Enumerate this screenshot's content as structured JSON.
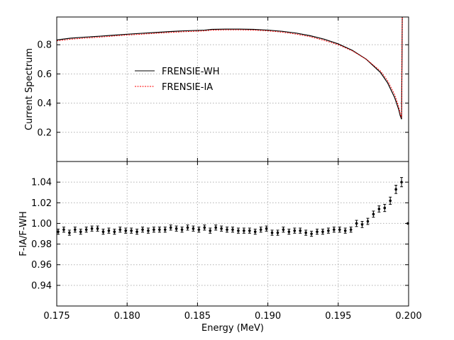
{
  "chart_data": [
    {
      "type": "line",
      "ylabel": "Current Spectrum",
      "xlim": [
        0.175,
        0.2
      ],
      "ylim": [
        0.0,
        0.99
      ],
      "xticks": [
        0.175,
        0.18,
        0.185,
        0.19,
        0.195,
        0.2
      ],
      "yticks": [
        0.2,
        0.4,
        0.6,
        0.8
      ],
      "ytick_labels": [
        "0.2",
        "0.4",
        "0.6",
        "0.8"
      ],
      "grid": true,
      "legend_position": "center-left",
      "series": [
        {
          "name": "FRENSIE-WH",
          "color": "#000000",
          "style": "solid",
          "x": [
            0.175,
            0.176,
            0.177,
            0.178,
            0.179,
            0.18,
            0.181,
            0.182,
            0.183,
            0.184,
            0.185,
            0.1855,
            0.186,
            0.187,
            0.188,
            0.189,
            0.19,
            0.191,
            0.192,
            0.193,
            0.194,
            0.195,
            0.196,
            0.197,
            0.198,
            0.1985,
            0.199,
            0.1993,
            0.1994,
            0.1995,
            0.19955
          ],
          "y": [
            0.833,
            0.845,
            0.852,
            0.858,
            0.865,
            0.872,
            0.878,
            0.884,
            0.89,
            0.895,
            0.898,
            0.9,
            0.905,
            0.907,
            0.907,
            0.905,
            0.9,
            0.892,
            0.88,
            0.862,
            0.838,
            0.806,
            0.762,
            0.7,
            0.61,
            0.54,
            0.44,
            0.355,
            0.315,
            0.29,
            0.99
          ]
        },
        {
          "name": "FRENSIE-IA",
          "color": "#ff0000",
          "style": "dashed",
          "x": [
            0.175,
            0.176,
            0.177,
            0.178,
            0.179,
            0.18,
            0.181,
            0.182,
            0.183,
            0.184,
            0.185,
            0.1855,
            0.186,
            0.187,
            0.188,
            0.189,
            0.19,
            0.191,
            0.192,
            0.193,
            0.194,
            0.195,
            0.196,
            0.197,
            0.198,
            0.1985,
            0.199,
            0.1993,
            0.1994,
            0.1995,
            0.19955
          ],
          "y": [
            0.826,
            0.838,
            0.845,
            0.852,
            0.859,
            0.866,
            0.872,
            0.878,
            0.884,
            0.889,
            0.893,
            0.895,
            0.9,
            0.902,
            0.902,
            0.9,
            0.895,
            0.886,
            0.873,
            0.855,
            0.83,
            0.8,
            0.758,
            0.7,
            0.62,
            0.555,
            0.46,
            0.375,
            0.33,
            0.3,
            0.99
          ]
        }
      ]
    },
    {
      "type": "scatter",
      "xlabel": "Energy (MeV)",
      "ylabel": "F-IA/F-WH",
      "xlim": [
        0.175,
        0.2
      ],
      "ylim": [
        0.92,
        1.06
      ],
      "xticks": [
        0.175,
        0.18,
        0.185,
        0.19,
        0.195,
        0.2
      ],
      "xtick_labels": [
        "0.175",
        "0.180",
        "0.185",
        "0.190",
        "0.195",
        "0.200"
      ],
      "yticks": [
        0.94,
        0.96,
        0.98,
        1.0,
        1.02,
        1.04
      ],
      "ytick_labels": [
        "0.94",
        "0.96",
        "0.98",
        "1.00",
        "1.02",
        "1.04"
      ],
      "grid": true,
      "error_bars": true,
      "series": [
        {
          "color": "#000000",
          "x": [
            0.1751,
            0.1755,
            0.1759,
            0.1763,
            0.1767,
            0.1771,
            0.1775,
            0.1779,
            0.1783,
            0.1787,
            0.1791,
            0.1795,
            0.1799,
            0.1803,
            0.1807,
            0.1811,
            0.1815,
            0.1819,
            0.1823,
            0.1827,
            0.1831,
            0.1835,
            0.1839,
            0.1843,
            0.1847,
            0.1851,
            0.1855,
            0.1859,
            0.1863,
            0.1867,
            0.1871,
            0.1875,
            0.1879,
            0.1883,
            0.1887,
            0.1891,
            0.1895,
            0.1899,
            0.1903,
            0.1907,
            0.1911,
            0.1915,
            0.1919,
            0.1923,
            0.1927,
            0.1931,
            0.1935,
            0.1939,
            0.1943,
            0.1947,
            0.1951,
            0.1955,
            0.1959,
            0.1963,
            0.1967,
            0.1971,
            0.1975,
            0.1979,
            0.1983,
            0.1987,
            0.1991,
            0.1995,
            0.19995
          ],
          "y": [
            0.992,
            0.994,
            0.991,
            0.994,
            0.992,
            0.994,
            0.995,
            0.995,
            0.992,
            0.993,
            0.992,
            0.994,
            0.993,
            0.993,
            0.992,
            0.994,
            0.993,
            0.994,
            0.994,
            0.994,
            0.996,
            0.995,
            0.994,
            0.996,
            0.995,
            0.994,
            0.996,
            0.993,
            0.996,
            0.995,
            0.994,
            0.994,
            0.993,
            0.993,
            0.993,
            0.992,
            0.994,
            0.995,
            0.991,
            0.991,
            0.994,
            0.992,
            0.993,
            0.993,
            0.991,
            0.99,
            0.992,
            0.992,
            0.993,
            0.994,
            0.994,
            0.993,
            0.994,
            1.0,
            0.999,
            1.002,
            1.009,
            1.014,
            1.015,
            1.022,
            1.033,
            1.04,
            1.0
          ],
          "yerr": [
            0.0025,
            0.0025,
            0.0025,
            0.0025,
            0.0025,
            0.0025,
            0.0025,
            0.0025,
            0.0025,
            0.0025,
            0.0025,
            0.0025,
            0.0025,
            0.0025,
            0.0025,
            0.0025,
            0.0025,
            0.0025,
            0.0025,
            0.0025,
            0.0025,
            0.0025,
            0.0025,
            0.0025,
            0.0025,
            0.0025,
            0.0025,
            0.0025,
            0.0025,
            0.0025,
            0.0025,
            0.0025,
            0.0025,
            0.0025,
            0.0025,
            0.0025,
            0.0025,
            0.0025,
            0.0025,
            0.0025,
            0.0025,
            0.0025,
            0.0025,
            0.0025,
            0.0025,
            0.0025,
            0.0025,
            0.0025,
            0.0025,
            0.0025,
            0.0025,
            0.0025,
            0.0025,
            0.003,
            0.003,
            0.003,
            0.003,
            0.003,
            0.0035,
            0.0035,
            0.004,
            0.0045,
            0.0
          ]
        }
      ]
    }
  ]
}
